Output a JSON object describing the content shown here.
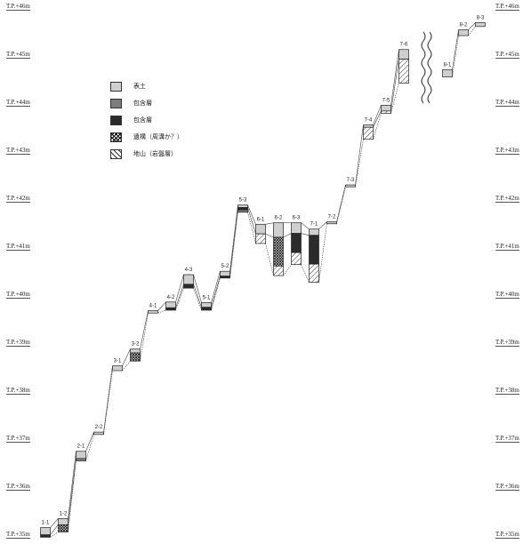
{
  "levels": [
    "T.P.+46m",
    "T.P.+45m",
    "T.P.+44m",
    "T.P.+43m",
    "T.P.+42m",
    "T.P.+41m",
    "T.P.+40m",
    "T.P.+39m",
    "T.P.+38m",
    "T.P.+37m",
    "T.P.+36m",
    "T.P.+35m"
  ],
  "legend": [
    {
      "key": "topsoil",
      "label": "表土"
    },
    {
      "key": "incl1",
      "label": "包含層"
    },
    {
      "key": "incl2",
      "label": "包含層"
    },
    {
      "key": "feature",
      "label": "遺構（周溝か？）"
    },
    {
      "key": "bedrock",
      "label": "地山（岩盤層）"
    }
  ],
  "colors": {
    "topsoil": "#cfcfcf",
    "incl1": "#7d7d7d",
    "incl2": "#2b2b2b",
    "line": "#333333"
  },
  "pits": [
    {
      "id": "1-1",
      "top_m": 35.23,
      "layers": [
        [
          "topsoil",
          0.15
        ],
        [
          "incl2",
          0.05
        ]
      ]
    },
    {
      "id": "1-2",
      "top_m": 35.42,
      "layers": [
        [
          "topsoil",
          0.13
        ],
        [
          "feature",
          0.15
        ]
      ]
    },
    {
      "id": "2-1",
      "top_m": 36.82,
      "layers": [
        [
          "topsoil",
          0.15
        ],
        [
          "incl1",
          0.05
        ]
      ]
    },
    {
      "id": "2-2",
      "top_m": 37.22,
      "layers": [
        [
          "topsoil",
          0.05
        ]
      ]
    },
    {
      "id": "3-1",
      "top_m": 38.6,
      "layers": [
        [
          "topsoil",
          0.1
        ]
      ]
    },
    {
      "id": "3-2",
      "top_m": 38.95,
      "layers": [
        [
          "topsoil",
          0.08
        ],
        [
          "feature",
          0.17
        ]
      ]
    },
    {
      "id": "4-1",
      "top_m": 39.75,
      "layers": [
        [
          "topsoil",
          0.05
        ]
      ]
    },
    {
      "id": "4-2",
      "top_m": 39.93,
      "layers": [
        [
          "topsoil",
          0.12
        ],
        [
          "incl2",
          0.05
        ]
      ]
    },
    {
      "id": "4-3",
      "top_m": 40.5,
      "layers": [
        [
          "topsoil",
          0.2
        ],
        [
          "incl2",
          0.08
        ]
      ]
    },
    {
      "id": "5-1",
      "top_m": 39.92,
      "layers": [
        [
          "topsoil",
          0.1
        ],
        [
          "incl2",
          0.06
        ]
      ]
    },
    {
      "id": "5-2",
      "top_m": 40.57,
      "layers": [
        [
          "topsoil",
          0.1
        ],
        [
          "incl2",
          0.04
        ]
      ]
    },
    {
      "id": "5-3",
      "top_m": 41.95,
      "layers": [
        [
          "topsoil",
          0.05
        ],
        [
          "incl2",
          0.05
        ],
        [
          "incl1",
          0.05
        ]
      ]
    },
    {
      "id": "6-1",
      "top_m": 41.55,
      "layers": [
        [
          "topsoil",
          0.2
        ],
        [
          "bedrock",
          0.2
        ]
      ]
    },
    {
      "id": "6-2",
      "top_m": 41.58,
      "layers": [
        [
          "topsoil",
          0.3
        ],
        [
          "feature",
          0.6
        ],
        [
          "bedrock",
          0.2
        ]
      ]
    },
    {
      "id": "6-3",
      "top_m": 41.58,
      "layers": [
        [
          "topsoil",
          0.22
        ],
        [
          "incl2",
          0.4
        ],
        [
          "bedrock",
          0.25
        ]
      ]
    },
    {
      "id": "7-1",
      "top_m": 41.45,
      "layers": [
        [
          "topsoil",
          0.13
        ],
        [
          "incl2",
          0.6
        ],
        [
          "bedrock",
          0.38
        ]
      ]
    },
    {
      "id": "7-2",
      "top_m": 41.6,
      "layers": [
        [
          "topsoil",
          0.04
        ]
      ]
    },
    {
      "id": "7-3",
      "top_m": 42.37,
      "layers": [
        [
          "topsoil",
          0.04
        ]
      ]
    },
    {
      "id": "7-4",
      "top_m": 43.62,
      "layers": [
        [
          "topsoil",
          0.05
        ],
        [
          "bedrock",
          0.25
        ]
      ]
    },
    {
      "id": "7-5",
      "top_m": 44.03,
      "layers": [
        [
          "topsoil",
          0.12
        ],
        [
          "bedrock",
          0.05
        ]
      ]
    },
    {
      "id": "7-6",
      "top_m": 45.19,
      "layers": [
        [
          "topsoil",
          0.2
        ],
        [
          "bedrock",
          0.5
        ]
      ]
    },
    {
      "id": "8-1",
      "top_m": 44.77,
      "layers": [
        [
          "topsoil",
          0.15
        ]
      ]
    },
    {
      "id": "8-2",
      "top_m": 45.6,
      "layers": [
        [
          "topsoil",
          0.12
        ]
      ]
    },
    {
      "id": "8-3",
      "top_m": 45.75,
      "layers": [
        [
          "topsoil",
          0.08
        ]
      ]
    }
  ]
}
